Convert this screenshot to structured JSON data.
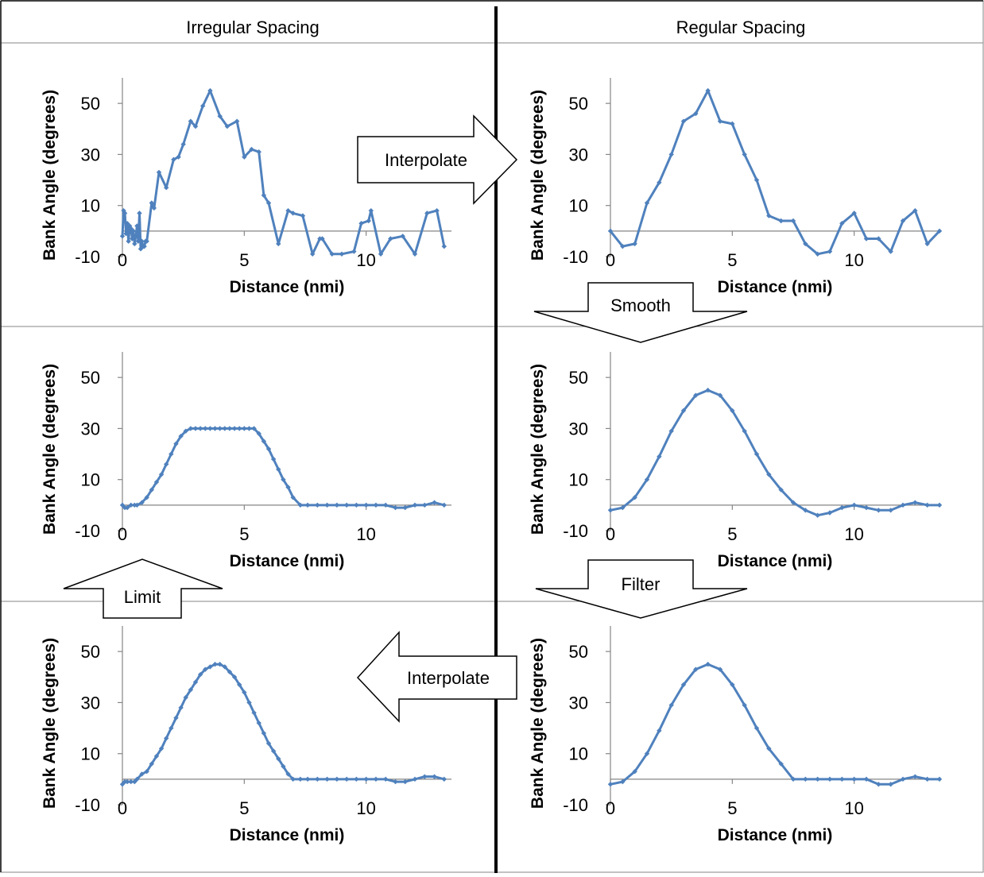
{
  "headers": {
    "left": "Irregular Spacing",
    "right": "Regular Spacing"
  },
  "arrows": {
    "interpolate_right": "Interpolate",
    "smooth": "Smooth",
    "filter": "Filter",
    "interpolate_left": "Interpolate",
    "limit": "Limit"
  },
  "colors": {
    "series": "#4F81BD",
    "axis": "#868686",
    "frame": "#000000"
  },
  "chart_data": [
    {
      "id": "irregular-raw",
      "type": "line",
      "xlabel": "Distance (nmi)",
      "ylabel": "Bank Angle (degrees)",
      "xlim": [
        0,
        13.5
      ],
      "ylim": [
        -10,
        60
      ],
      "xticks": [
        0,
        5,
        10
      ],
      "yticks": [
        -10,
        10,
        30,
        50
      ],
      "markers": true,
      "grid": false,
      "legend": "none",
      "series": [
        {
          "x": [
            0,
            0.05,
            0.1,
            0.15,
            0.2,
            0.25,
            0.3,
            0.35,
            0.4,
            0.45,
            0.5,
            0.55,
            0.6,
            0.65,
            0.7,
            0.75,
            0.8,
            0.85,
            0.9,
            0.95,
            1.0,
            1.2,
            1.3,
            1.5,
            1.8,
            2.1,
            2.3,
            2.5,
            2.8,
            3.0,
            3.3,
            3.6,
            4.0,
            4.3,
            4.7,
            5.0,
            5.3,
            5.6,
            5.8,
            6.0,
            6.4,
            6.8,
            7.0,
            7.4,
            7.8,
            8.1,
            8.2,
            8.6,
            9.0,
            9.5,
            9.8,
            10.1,
            10.2,
            10.6,
            11.0,
            11.5,
            12.0,
            12.5,
            12.9,
            13.2
          ],
          "y": [
            -2,
            8,
            7,
            -1,
            3,
            -4,
            2,
            1,
            -3,
            0,
            -5,
            -2,
            2,
            -4,
            7,
            -7,
            -4,
            -6,
            -6,
            -4,
            -4,
            11,
            9,
            23,
            17,
            28,
            29,
            34,
            43,
            41,
            49,
            55,
            45,
            41,
            43,
            29,
            32,
            31,
            14,
            11,
            -5,
            8,
            7,
            6,
            -9,
            -3,
            -3,
            -9,
            -9,
            -8,
            3,
            4,
            8,
            -9,
            -3,
            -2,
            -9,
            7,
            8,
            -6
          ]
        }
      ]
    },
    {
      "id": "regular-interpolated",
      "type": "line",
      "xlabel": "Distance (nmi)",
      "ylabel": "Bank Angle (degrees)",
      "xlim": [
        0,
        13.5
      ],
      "ylim": [
        -10,
        60
      ],
      "xticks": [
        0,
        5,
        10
      ],
      "yticks": [
        -10,
        10,
        30,
        50
      ],
      "markers": true,
      "grid": false,
      "legend": "none",
      "series": [
        {
          "x": [
            0,
            0.5,
            1,
            1.5,
            2,
            2.5,
            3,
            3.5,
            4,
            4.5,
            5,
            5.5,
            6,
            6.5,
            7,
            7.5,
            8,
            8.5,
            9,
            9.5,
            10,
            10.5,
            11,
            11.5,
            12,
            12.5,
            13,
            13.5
          ],
          "y": [
            0,
            -6,
            -5,
            11,
            19,
            30,
            43,
            46,
            55,
            43,
            42,
            30,
            20,
            6,
            4,
            4,
            -5,
            -9,
            -8,
            3,
            7,
            -3,
            -3,
            -8,
            4,
            8,
            -5,
            0
          ]
        }
      ]
    },
    {
      "id": "regular-smoothed",
      "type": "line",
      "xlabel": "Distance (nmi)",
      "ylabel": "Bank Angle (degrees)",
      "xlim": [
        0,
        13.5
      ],
      "ylim": [
        -10,
        60
      ],
      "xticks": [
        0,
        5,
        10
      ],
      "yticks": [
        -10,
        10,
        30,
        50
      ],
      "markers": true,
      "grid": false,
      "legend": "none",
      "series": [
        {
          "x": [
            0,
            0.5,
            1,
            1.5,
            2,
            2.5,
            3,
            3.5,
            4,
            4.5,
            5,
            5.5,
            6,
            6.5,
            7,
            7.5,
            8,
            8.5,
            9,
            9.5,
            10,
            10.5,
            11,
            11.5,
            12,
            12.5,
            13,
            13.5
          ],
          "y": [
            -2,
            -1,
            3,
            10,
            19,
            29,
            37,
            43,
            45,
            43,
            37,
            29,
            20,
            12,
            6,
            1,
            -2,
            -4,
            -3,
            -1,
            0,
            -1,
            -2,
            -2,
            0,
            1,
            0,
            0
          ]
        }
      ]
    },
    {
      "id": "regular-filtered",
      "type": "line",
      "xlabel": "Distance (nmi)",
      "ylabel": "Bank Angle (degrees)",
      "xlim": [
        0,
        13.5
      ],
      "ylim": [
        -10,
        60
      ],
      "xticks": [
        0,
        5,
        10
      ],
      "yticks": [
        -10,
        10,
        30,
        50
      ],
      "markers": true,
      "grid": false,
      "legend": "none",
      "series": [
        {
          "x": [
            0,
            0.5,
            1,
            1.5,
            2,
            2.5,
            3,
            3.5,
            4,
            4.5,
            5,
            5.5,
            6,
            6.5,
            7,
            7.5,
            8,
            8.5,
            9,
            9.5,
            10,
            10.5,
            11,
            11.5,
            12,
            12.5,
            13,
            13.5
          ],
          "y": [
            -2,
            -1,
            3,
            10,
            19,
            29,
            37,
            43,
            45,
            43,
            37,
            29,
            20,
            12,
            6,
            0,
            0,
            0,
            0,
            0,
            0,
            0,
            -2,
            -2,
            0,
            1,
            0,
            0
          ]
        }
      ]
    },
    {
      "id": "irregular-limited",
      "type": "line",
      "xlabel": "Distance (nmi)",
      "ylabel": "Bank Angle (degrees)",
      "xlim": [
        0,
        13.5
      ],
      "ylim": [
        -10,
        60
      ],
      "xticks": [
        0,
        5,
        10
      ],
      "yticks": [
        -10,
        10,
        30,
        50
      ],
      "markers": true,
      "grid": false,
      "legend": "none",
      "series": [
        {
          "x": [
            0,
            0.1,
            0.2,
            0.35,
            0.5,
            0.6,
            0.8,
            1.0,
            1.2,
            1.4,
            1.6,
            1.8,
            2.0,
            2.2,
            2.4,
            2.6,
            2.8,
            3.0,
            3.2,
            3.4,
            3.6,
            3.8,
            4.0,
            4.2,
            4.4,
            4.6,
            4.8,
            5.0,
            5.2,
            5.4,
            5.6,
            5.8,
            6.0,
            6.2,
            6.4,
            6.6,
            6.8,
            7.0,
            7.3,
            7.6,
            8.0,
            8.4,
            8.8,
            9.2,
            9.6,
            10.0,
            10.4,
            10.8,
            11.2,
            11.6,
            12.0,
            12.4,
            12.8,
            13.2
          ],
          "y": [
            0,
            -1,
            -1,
            0,
            0,
            0,
            1,
            3,
            6,
            9,
            12,
            16,
            20,
            24,
            27,
            29,
            30,
            30,
            30,
            30,
            30,
            30,
            30,
            30,
            30,
            30,
            30,
            30,
            30,
            30,
            28,
            25,
            22,
            18,
            14,
            10,
            7,
            3,
            0,
            0,
            0,
            0,
            0,
            0,
            0,
            0,
            0,
            0,
            -1,
            -1,
            0,
            0,
            1,
            0
          ]
        }
      ]
    },
    {
      "id": "irregular-interpolated",
      "type": "line",
      "xlabel": "Distance (nmi)",
      "ylabel": "Bank Angle (degrees)",
      "xlim": [
        0,
        13.5
      ],
      "ylim": [
        -10,
        60
      ],
      "xticks": [
        0,
        5,
        10
      ],
      "yticks": [
        -10,
        10,
        30,
        50
      ],
      "markers": true,
      "grid": false,
      "legend": "none",
      "series": [
        {
          "x": [
            0,
            0.1,
            0.2,
            0.35,
            0.5,
            0.6,
            0.8,
            1.0,
            1.2,
            1.4,
            1.6,
            1.8,
            2.0,
            2.2,
            2.4,
            2.6,
            2.8,
            3.0,
            3.2,
            3.4,
            3.6,
            3.8,
            4.0,
            4.2,
            4.4,
            4.6,
            4.8,
            5.0,
            5.2,
            5.4,
            5.6,
            5.8,
            6.0,
            6.2,
            6.4,
            6.6,
            6.8,
            7.0,
            7.3,
            7.6,
            8.0,
            8.4,
            8.8,
            9.2,
            9.6,
            10.0,
            10.4,
            10.8,
            11.2,
            11.6,
            12.0,
            12.4,
            12.8,
            13.2
          ],
          "y": [
            -2,
            -1,
            -1,
            -1,
            -1,
            0,
            2,
            3,
            6,
            9,
            12,
            16,
            20,
            24,
            28,
            32,
            35,
            38,
            41,
            43,
            44,
            45,
            45,
            44,
            42,
            40,
            37,
            34,
            30,
            26,
            22,
            18,
            14,
            11,
            8,
            5,
            2,
            0,
            0,
            0,
            0,
            0,
            0,
            0,
            0,
            0,
            0,
            0,
            -1,
            -1,
            0,
            1,
            1,
            0
          ]
        }
      ]
    }
  ]
}
